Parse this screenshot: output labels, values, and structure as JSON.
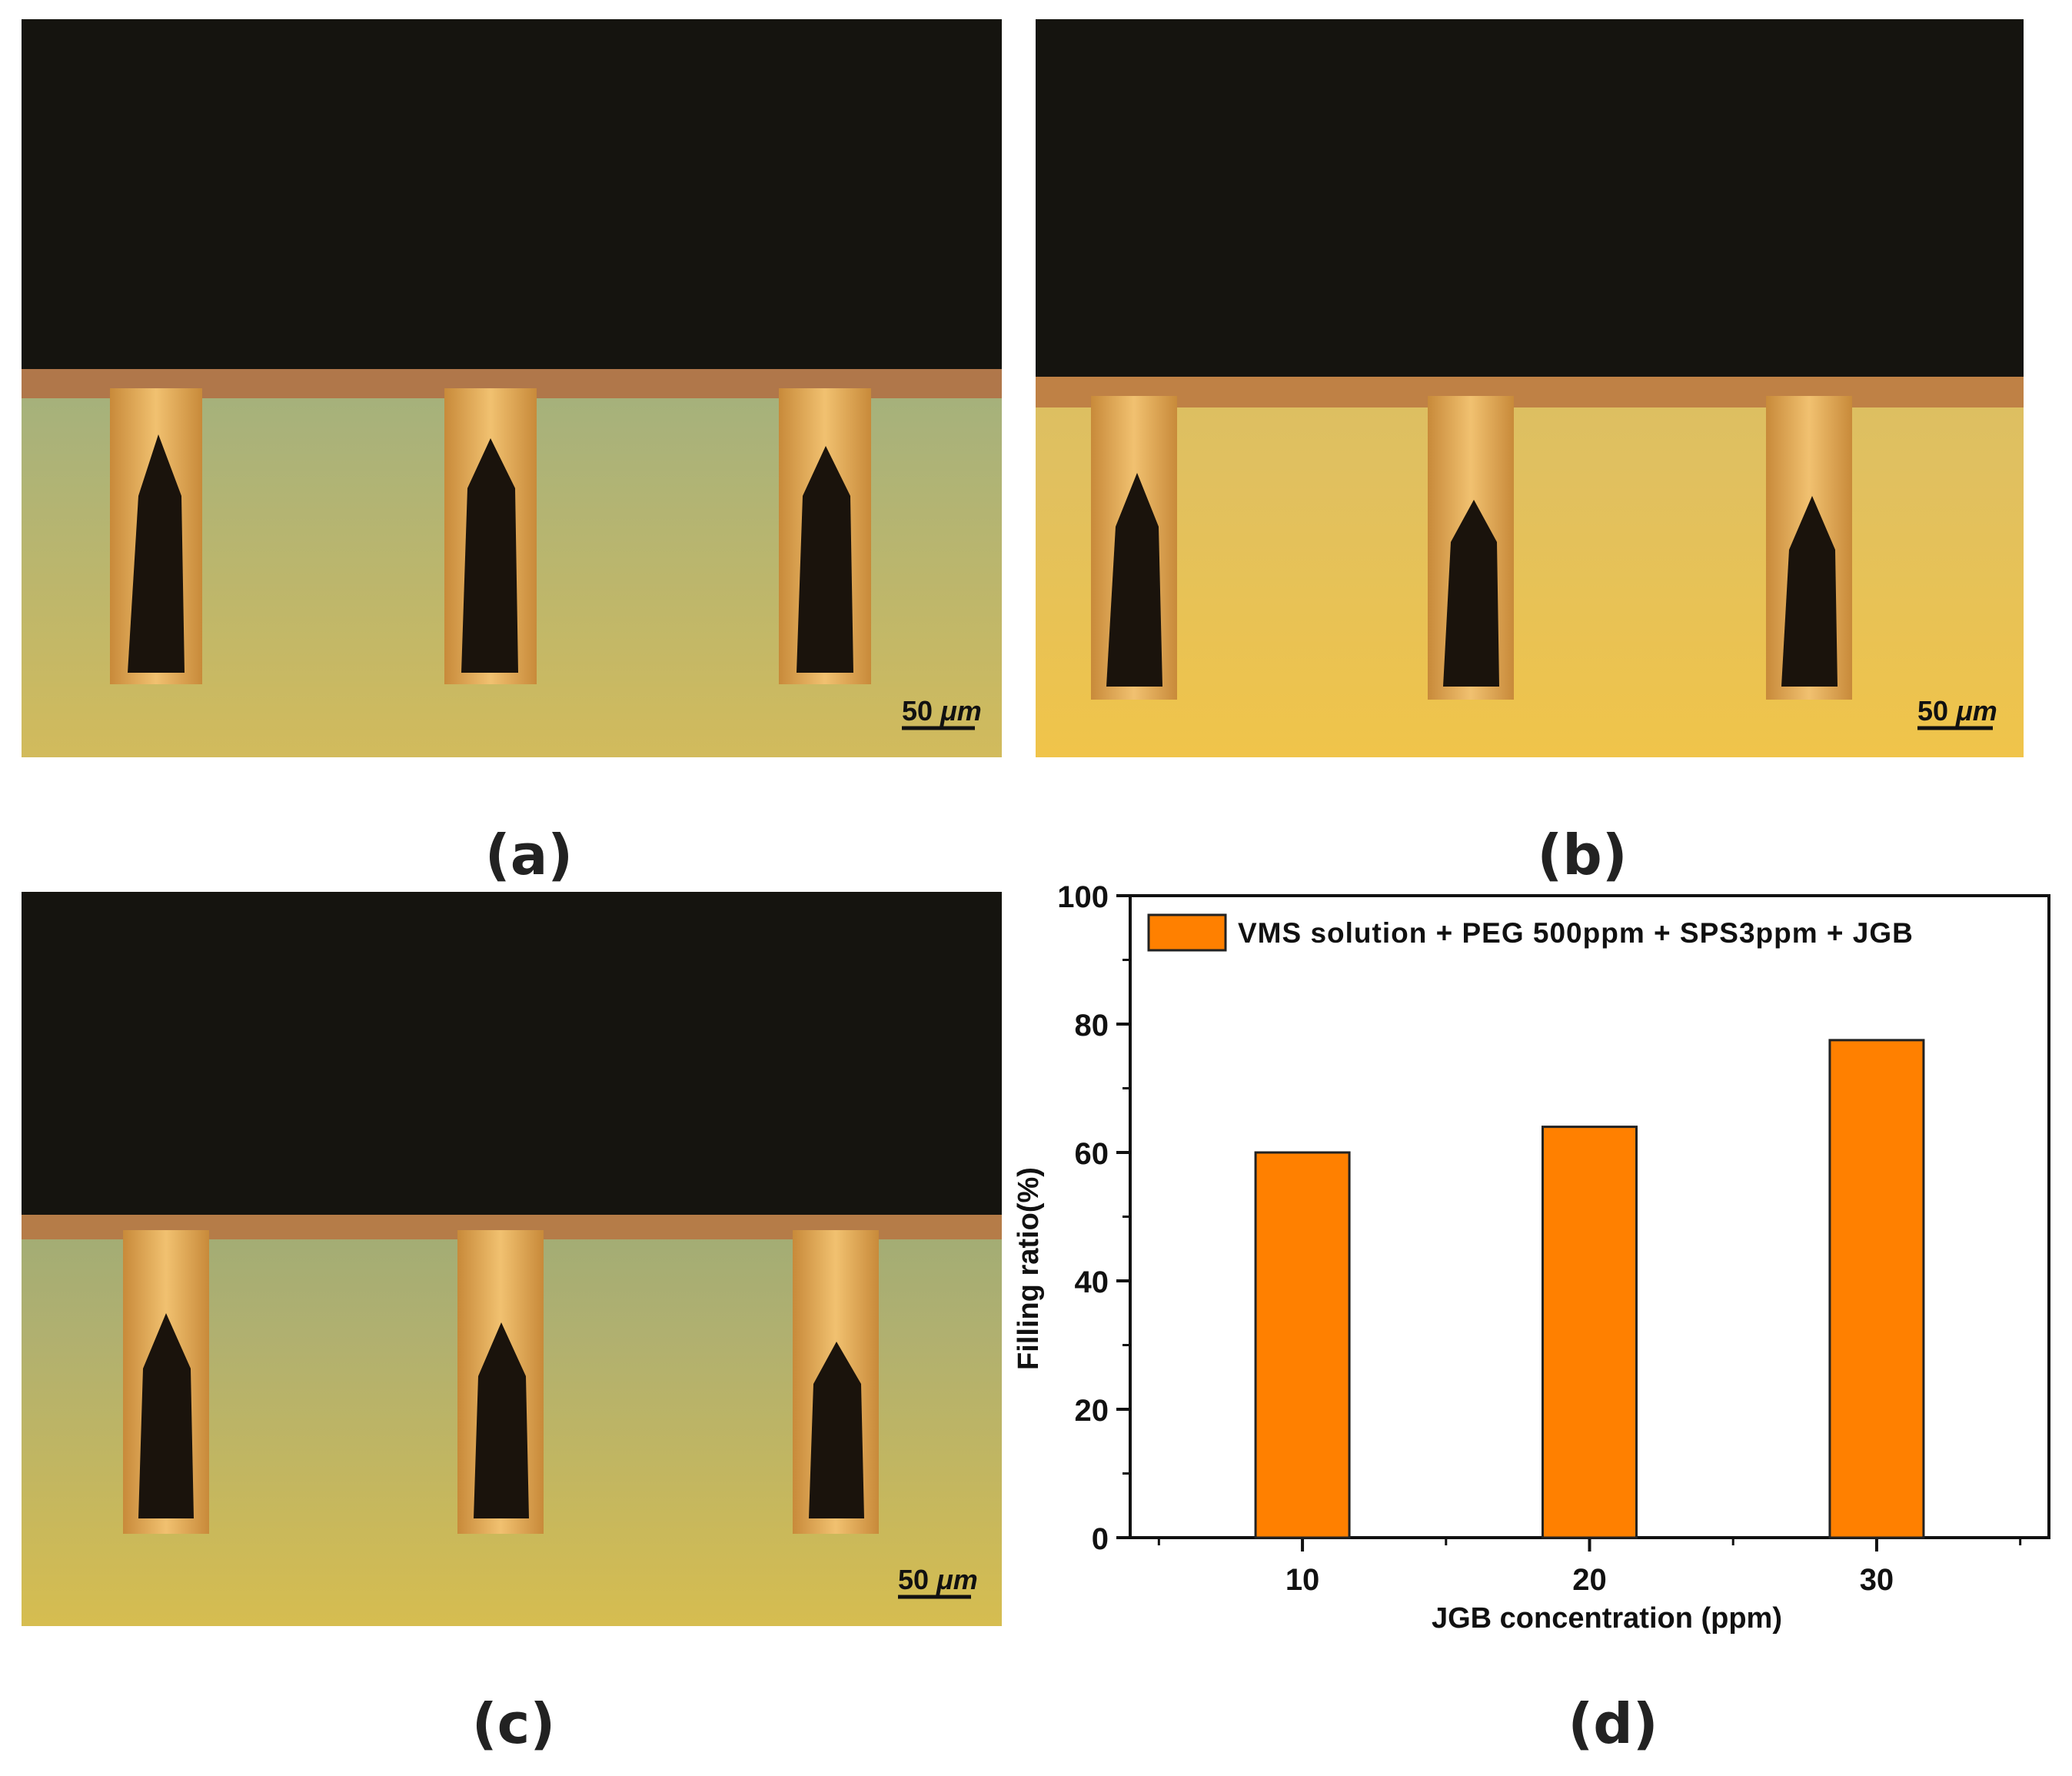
{
  "panels": [
    {
      "label": "(a)",
      "scale_value": "50",
      "scale_unit": "μm"
    },
    {
      "label": "(b)",
      "scale_value": "50",
      "scale_unit": "μm"
    },
    {
      "label": "(c)",
      "scale_value": "50",
      "scale_unit": "μm"
    },
    {
      "label": "(d)"
    }
  ],
  "chart_data": {
    "type": "bar",
    "categories": [
      "10",
      "20",
      "30"
    ],
    "series": [
      {
        "name": "VMS solution + PEG 500ppm + SPS3ppm + JGB",
        "values": [
          60,
          64,
          77.5
        ],
        "color": "#ff8000"
      }
    ],
    "xlabel": "JGB concentration (ppm)",
    "ylabel": "Filling ratio(%)",
    "ylim": [
      0,
      100
    ],
    "yticks": [
      "0",
      "20",
      "40",
      "60",
      "80",
      "100"
    ],
    "legend_position": "top-left",
    "grid": false
  }
}
